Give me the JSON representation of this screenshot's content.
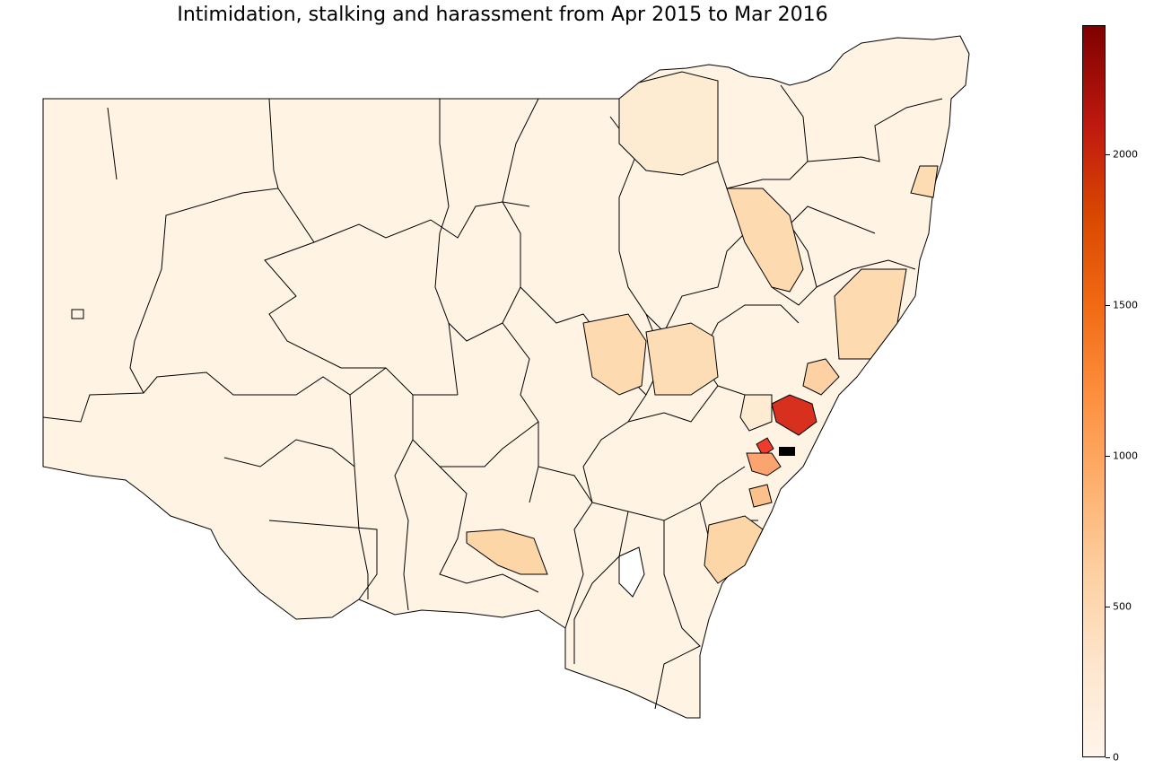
{
  "title": "Intimidation, stalking and harassment from Apr 2015 to Mar 2016",
  "colorbar": {
    "min": 0,
    "max": 2430,
    "colormap": "OrRd",
    "ticks": [
      {
        "value": 0,
        "label": "0"
      },
      {
        "value": 500,
        "label": "500"
      },
      {
        "value": 1000,
        "label": "1000"
      },
      {
        "value": 1500,
        "label": "1500"
      },
      {
        "value": 2000,
        "label": "2000"
      }
    ]
  },
  "colors": {
    "background": "#ffffff",
    "border": "#000000",
    "lowest": "#fff5eb",
    "highest": "#7f0000"
  }
}
